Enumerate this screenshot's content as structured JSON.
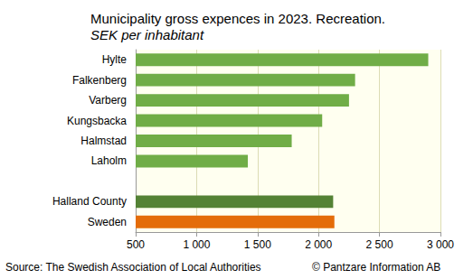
{
  "chart_data": {
    "type": "bar",
    "orientation": "horizontal",
    "title": "Municipality gross expences in 2023. Recreation.",
    "subtitle": "SEK per inhabitant",
    "annotations": [
      "Source: The Swedish Association of Local Authorities",
      "© Pantzare Information AB"
    ],
    "categories": [
      "Hylte",
      "Falkenberg",
      "Varberg",
      "Kungsbacka",
      "Halmstad",
      "Laholm",
      null,
      "Halland County",
      "Sweden"
    ],
    "values": [
      2900,
      2300,
      2250,
      2030,
      1780,
      1420,
      null,
      2120,
      2130
    ],
    "colors": [
      "#70ad47",
      "#70ad47",
      "#70ad47",
      "#70ad47",
      "#70ad47",
      "#70ad47",
      "#70ad47",
      "#548235",
      "#e46c0a"
    ],
    "xlim": [
      500,
      3000
    ],
    "xticks": [
      500,
      {
        "value": 1000,
        "label": "1 000"
      },
      {
        "value": 1500,
        "label": "1 500"
      },
      {
        "value": 2000,
        "label": "2 000"
      },
      {
        "value": 2500,
        "label": "2 500"
      },
      {
        "value": 3000,
        "label": "3 000"
      }
    ],
    "grid": true
  }
}
